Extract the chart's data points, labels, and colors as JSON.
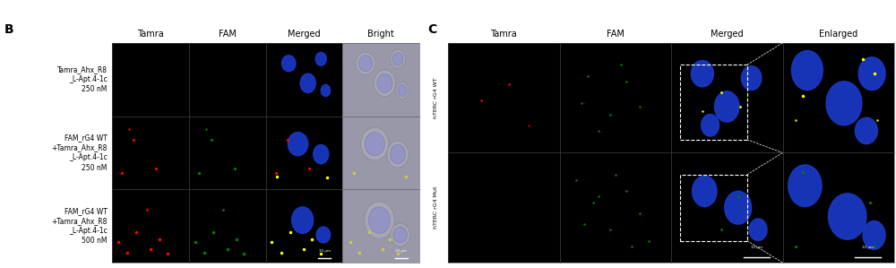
{
  "panel_B_label": "B",
  "panel_C_label": "C",
  "panel_B_col_headers": [
    "Tamra",
    "FAM",
    "Merged",
    "Bright"
  ],
  "panel_C_col_headers": [
    "Tamra",
    "FAM",
    "Merged",
    "Enlarged"
  ],
  "panel_B_row_labels": [
    "Tamra_Ahx_R8\n_L-Apt.4-1c\n250 nM",
    "FAM_rG4 WT\n+Tamra_Ahx_R8\n_L-Apt.4-1c\n250 nM",
    "FAM_rG4 WT\n+Tamra_Ahx_R8\n_L-Apt.4-1c\n500 nM"
  ],
  "panel_C_row_labels": [
    "hTERC rG4 WT",
    "hTERC rG4 Mut"
  ],
  "scale_bar_text": "10 μm",
  "header_fontsize": 7,
  "label_fontsize": 5.5,
  "panel_label_fontsize": 10,
  "nucleus_color": "#1a3acc",
  "bright_bg": "#a8a8b0",
  "bright_nucleus_color": "#8888bb"
}
